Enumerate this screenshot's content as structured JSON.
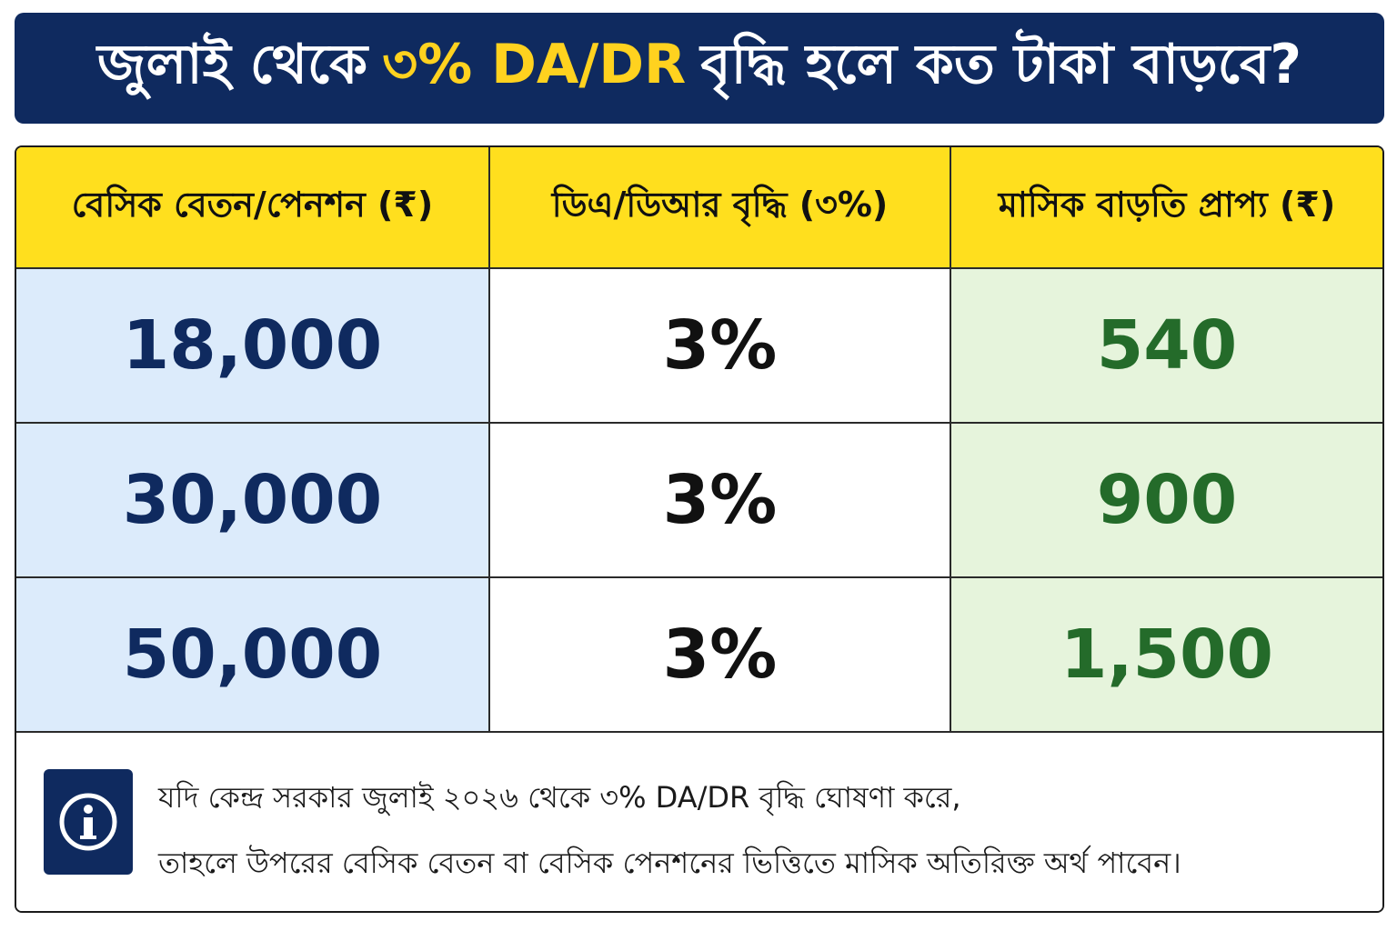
{
  "title": {
    "prefix": "জুলাই থেকে",
    "highlight": "৩% DA/DR",
    "suffix": "বৃদ্ধি হলে কত টাকা বাড়বে?"
  },
  "table": {
    "headers": [
      "বেসিক বেতন/পেনশন (₹)",
      "ডিএ/ডিআর বৃদ্ধি (৩%)",
      "মাসিক বাড়তি প্রাপ্য (₹)"
    ],
    "rows": [
      {
        "basic": "18,000",
        "rate": "3%",
        "extra": "540"
      },
      {
        "basic": "30,000",
        "rate": "3%",
        "extra": "900"
      },
      {
        "basic": "50,000",
        "rate": "3%",
        "extra": "1,500"
      }
    ]
  },
  "note": {
    "icon": "info-icon",
    "line1": "যদি কেন্দ্র সরকার জুলাই ২০২৬ থেকে ৩% DA/DR বৃদ্ধি ঘোষণা করে,",
    "line2": "তাহলে উপরের বেসিক বেতন বা বেসিক পেনশনের ভিত্তিতে মাসিক অতিরিক্ত অর্থ পাবেন।"
  },
  "colors": {
    "navy": "#0f2a5f",
    "yellow": "#ffd21f",
    "basic_bg": "#dcebfb",
    "extra_bg": "#e6f4dc",
    "extra_text": "#246b2a"
  }
}
